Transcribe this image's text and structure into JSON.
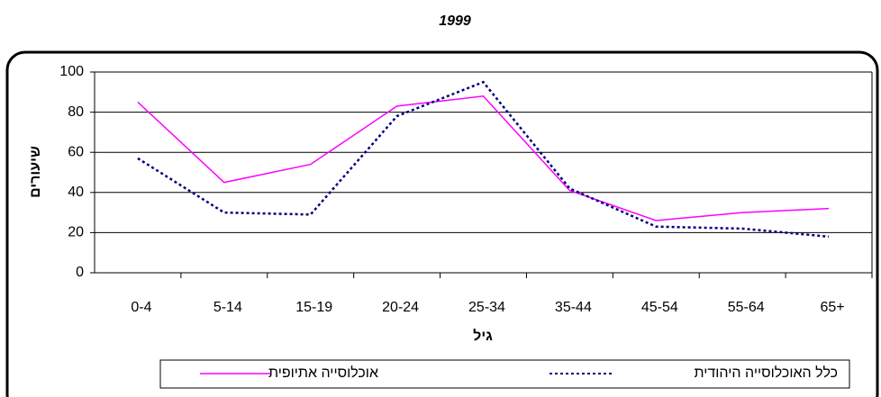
{
  "chart_data": {
    "type": "line",
    "title": "1999",
    "x_label": "גיל",
    "y_label": "שיעורים",
    "categories": [
      "0-4",
      "5-14",
      "15-19",
      "20-24",
      "25-34",
      "35-44",
      "45-54",
      "55-64",
      "65+"
    ],
    "series": [
      {
        "name": "אוכלוסייה אתיופית",
        "color": "#ff00ff",
        "dash": "solid",
        "values": [
          85,
          45,
          54,
          83,
          88,
          41,
          26,
          30,
          32
        ]
      },
      {
        "name": "כלל האוכלוסייה היהודית",
        "color": "#000080",
        "dash": "dotted",
        "values": [
          57,
          30,
          29,
          78,
          95,
          42,
          23,
          22,
          18
        ]
      }
    ],
    "ylim": [
      0,
      100
    ],
    "yticks": [
      0,
      20,
      40,
      60,
      80,
      100
    ],
    "grid": true
  }
}
